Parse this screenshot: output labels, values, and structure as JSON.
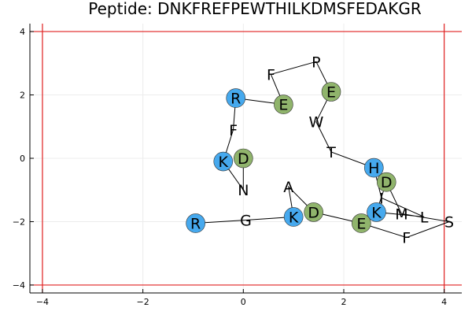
{
  "chart_data": {
    "type": "scatter",
    "title": "Peptide: DNKFREFPEWTHILKDMSFEDAKGR",
    "xlabel": "",
    "ylabel": "",
    "xlim": [
      -4.25,
      4.35
    ],
    "ylim": [
      -4.25,
      4.25
    ],
    "xticks": [
      -4,
      -2,
      0,
      2,
      4
    ],
    "yticks": [
      -4,
      -2,
      0,
      2,
      4
    ],
    "xtick_labels": [
      "−4",
      "−2",
      "0",
      "2",
      "4"
    ],
    "ytick_labels": [
      "−4",
      "−2",
      "0",
      "2",
      "4"
    ],
    "grid": true,
    "legend": "none",
    "boundary_lines": {
      "x": [
        -4,
        4
      ],
      "y": [
        -4,
        4
      ],
      "color": "#e02020"
    },
    "colors": {
      "positive": "#46a9ee",
      "negative": "#90b46c",
      "line": "#000000",
      "grid": "#ececec"
    },
    "residues": [
      {
        "aa": "D",
        "x": 0.0,
        "y": 0.0,
        "type": "negative"
      },
      {
        "aa": "N",
        "x": 0.0,
        "y": -1.0,
        "type": "none"
      },
      {
        "aa": "K",
        "x": -0.4,
        "y": -0.1,
        "type": "positive"
      },
      {
        "aa": "F",
        "x": -0.2,
        "y": 0.9,
        "type": "none"
      },
      {
        "aa": "R",
        "x": -0.15,
        "y": 1.9,
        "type": "positive"
      },
      {
        "aa": "E",
        "x": 0.8,
        "y": 1.7,
        "type": "negative"
      },
      {
        "aa": "F",
        "x": 0.55,
        "y": 2.65,
        "type": "none"
      },
      {
        "aa": "P",
        "x": 1.45,
        "y": 3.05,
        "type": "none"
      },
      {
        "aa": "E",
        "x": 1.75,
        "y": 2.1,
        "type": "negative"
      },
      {
        "aa": "W",
        "x": 1.45,
        "y": 1.15,
        "type": "none"
      },
      {
        "aa": "T",
        "x": 1.75,
        "y": 0.2,
        "type": "none"
      },
      {
        "aa": "H",
        "x": 2.6,
        "y": -0.3,
        "type": "positive"
      },
      {
        "aa": "I",
        "x": 2.75,
        "y": -1.25,
        "type": "none"
      },
      {
        "aa": "L",
        "x": 3.6,
        "y": -1.85,
        "type": "none"
      },
      {
        "aa": "K",
        "x": 2.65,
        "y": -1.7,
        "type": "positive"
      },
      {
        "aa": "D",
        "x": 2.85,
        "y": -0.75,
        "type": "negative"
      },
      {
        "aa": "M",
        "x": 3.15,
        "y": -1.75,
        "type": "none"
      },
      {
        "aa": "S",
        "x": 4.1,
        "y": -2.0,
        "type": "none"
      },
      {
        "aa": "F",
        "x": 3.25,
        "y": -2.5,
        "type": "none"
      },
      {
        "aa": "E",
        "x": 2.35,
        "y": -2.05,
        "type": "negative"
      },
      {
        "aa": "D",
        "x": 1.4,
        "y": -1.7,
        "type": "negative"
      },
      {
        "aa": "A",
        "x": 0.9,
        "y": -0.9,
        "type": "none"
      },
      {
        "aa": "K",
        "x": 1.0,
        "y": -1.85,
        "type": "positive"
      },
      {
        "aa": "G",
        "x": 0.05,
        "y": -1.95,
        "type": "none"
      },
      {
        "aa": "R",
        "x": -0.95,
        "y": -2.05,
        "type": "positive"
      }
    ]
  }
}
